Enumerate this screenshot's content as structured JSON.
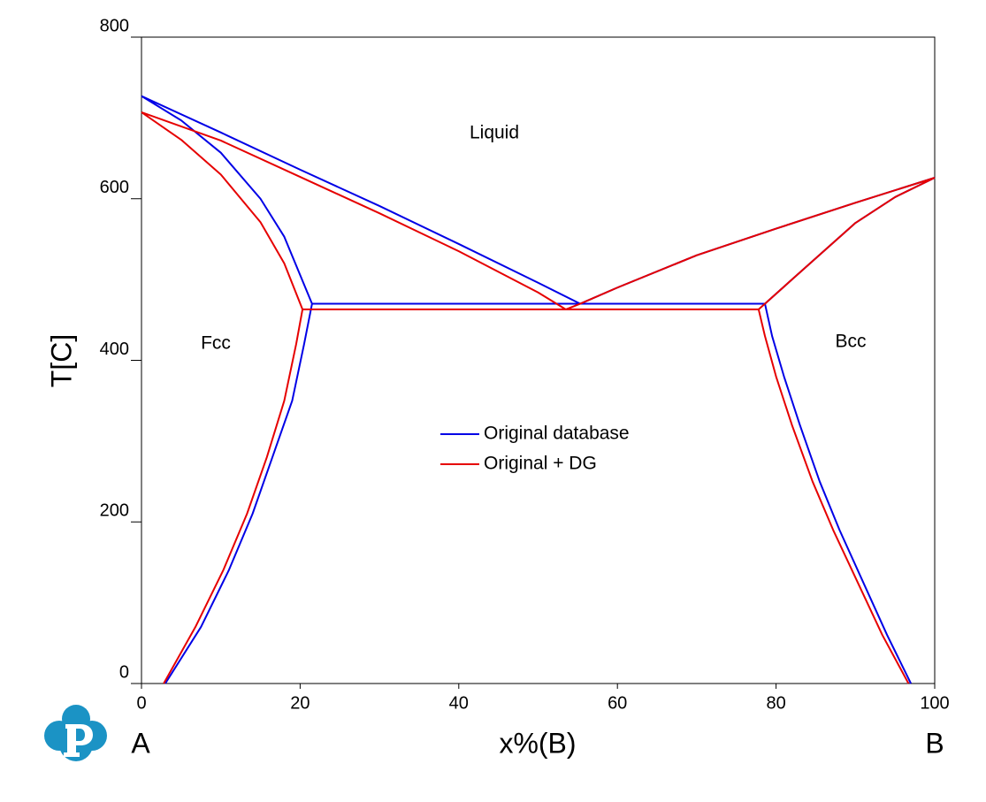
{
  "chart_data": {
    "type": "line",
    "x_label": "x%(B)",
    "y_label": "T[C]",
    "axis_end_labels": [
      "A",
      "B"
    ],
    "annotations": [
      "Liquid",
      "Fcc",
      "Bcc"
    ],
    "xlim": [
      0,
      100
    ],
    "ylim": [
      0,
      800
    ],
    "xticks": [
      0,
      20,
      40,
      60,
      80,
      100
    ],
    "yticks": [
      0,
      200,
      400,
      600,
      800
    ],
    "grid": false,
    "legend": "center",
    "series": [
      {
        "name": "Original database",
        "color": "#0000e6",
        "x": [
          0,
          10,
          20,
          30,
          40,
          50,
          55.3,
          null,
          0,
          5,
          10,
          15,
          18,
          21.5,
          null,
          21.5,
          78.6,
          null,
          55.3,
          60,
          70,
          80,
          90,
          100,
          null,
          78.6,
          82,
          86,
          90,
          95,
          100,
          null,
          21.5,
          20.5,
          19,
          16.5,
          14,
          11,
          7.5,
          3,
          null,
          78.6,
          79.5,
          81,
          83,
          85.5,
          88,
          91,
          94,
          97
        ],
        "values": [
          727,
          682,
          636,
          591,
          544,
          496,
          470,
          null,
          727,
          697,
          657,
          600,
          553,
          470,
          null,
          470,
          470,
          null,
          470,
          490,
          530,
          563,
          595,
          626,
          null,
          470,
          500,
          535,
          570,
          602,
          626,
          null,
          470,
          420,
          350,
          280,
          210,
          140,
          70,
          0,
          null,
          470,
          430,
          380,
          320,
          250,
          190,
          125,
          60,
          0
        ]
      },
      {
        "name": "Original + DG",
        "color": "#e60000",
        "x": [
          0,
          10,
          20,
          30,
          40,
          50,
          53.5,
          null,
          0,
          5,
          10,
          15,
          18,
          20.3,
          null,
          20.3,
          77.8,
          null,
          53.5,
          55.3,
          60,
          70,
          80,
          90,
          100,
          null,
          77.8,
          78.6,
          82,
          86,
          90,
          95,
          100,
          null,
          20.3,
          19.5,
          18,
          15.8,
          13.3,
          10.3,
          6.8,
          2.8,
          null,
          77.8,
          78.6,
          80,
          82,
          84.6,
          87.2,
          90.3,
          93.4,
          96.7
        ],
        "values": [
          707,
          672,
          627,
          582,
          535,
          484,
          463,
          null,
          707,
          673,
          630,
          571,
          520,
          463,
          null,
          463,
          463,
          null,
          463,
          470,
          490,
          530,
          563,
          595,
          626,
          null,
          463,
          470,
          500,
          535,
          570,
          602,
          626,
          null,
          463,
          420,
          350,
          280,
          210,
          140,
          70,
          0,
          null,
          463,
          430,
          380,
          320,
          250,
          190,
          125,
          60,
          0
        ]
      }
    ]
  }
}
